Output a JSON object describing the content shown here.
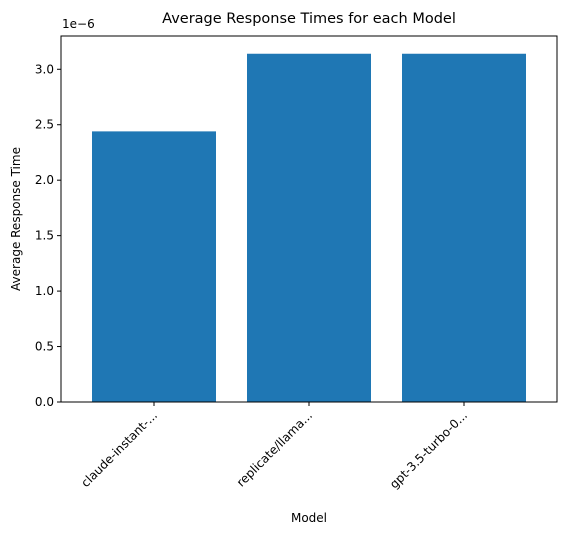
{
  "chart_data": {
    "type": "bar",
    "title": "Average Response Times for each Model",
    "xlabel": "Model",
    "ylabel": "Average Response Time",
    "y_multiplier_label": "1e−6",
    "categories": [
      "claude-instant-...",
      "replicate/llama...",
      "gpt-3.5-turbo-0..."
    ],
    "values": [
      2.44,
      3.14,
      3.14
    ],
    "ylim": [
      0,
      3.3
    ],
    "yticks": [
      0.0,
      0.5,
      1.0,
      1.5,
      2.0,
      2.5,
      3.0
    ],
    "ytick_labels": [
      "0.0",
      "0.5",
      "1.0",
      "1.5",
      "2.0",
      "2.5",
      "3.0"
    ],
    "bar_color": "#1f77b4",
    "grid": false,
    "xtick_rotation_deg": 45
  }
}
